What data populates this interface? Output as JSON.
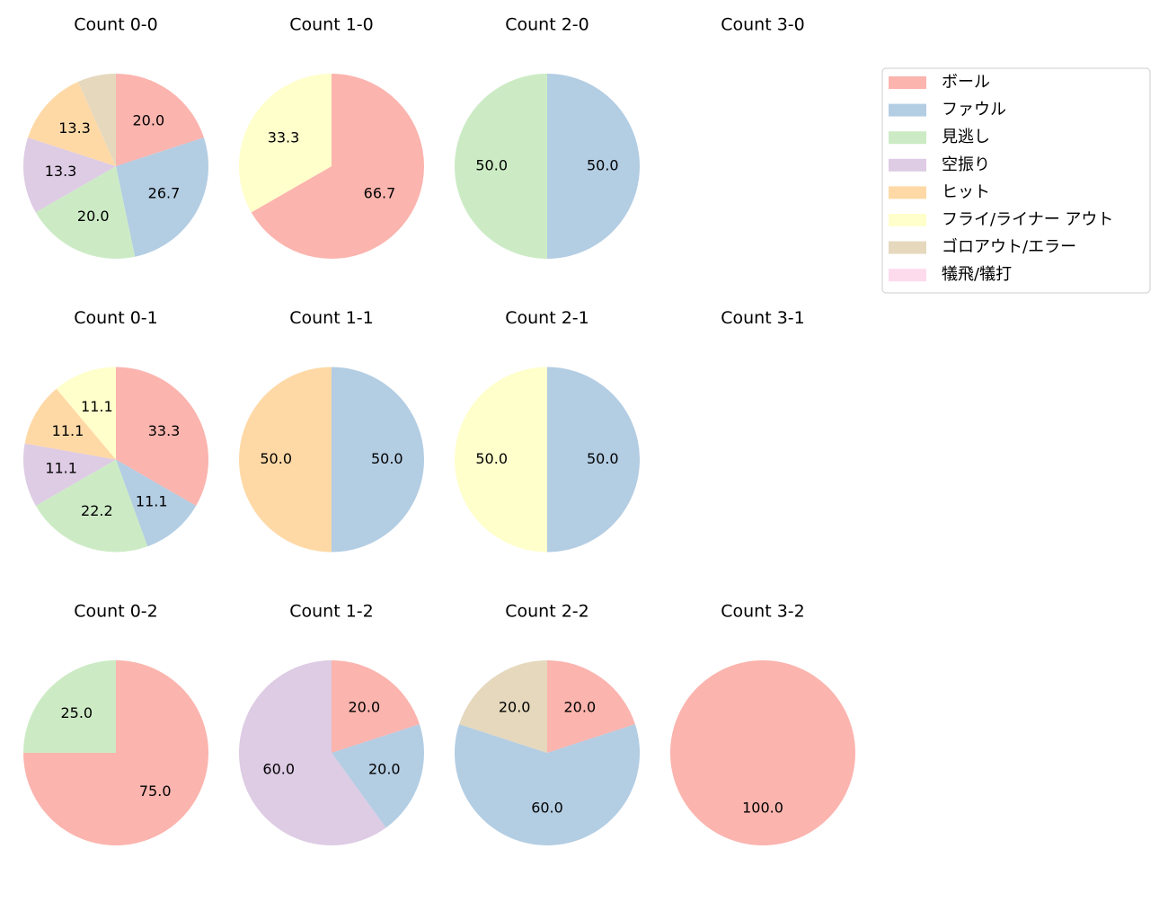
{
  "legend": {
    "labels": [
      "ボール",
      "ファウル",
      "見逃し",
      "空振り",
      "ヒット",
      "フライ/ライナー アウト",
      "ゴロアウト/エラー",
      "犠飛/犠打"
    ],
    "colors": [
      "#fbb4ae",
      "#b3cde3",
      "#ccebc5",
      "#decbe4",
      "#fed9a6",
      "#ffffcc",
      "#e5d8bd",
      "#fddaec"
    ]
  },
  "chart_data": [
    {
      "type": "pie",
      "title": "Count 0-0",
      "categories": [
        "ボール",
        "ファウル",
        "見逃し",
        "空振り",
        "ヒット",
        "ゴロアウト/エラー"
      ],
      "values": [
        20.0,
        26.7,
        20.0,
        13.3,
        13.3,
        6.7
      ],
      "value_labels": [
        "20.0",
        "26.7",
        "20.0",
        "13.3",
        "13.3",
        null
      ]
    },
    {
      "type": "pie",
      "title": "Count 1-0",
      "categories": [
        "ボール",
        "フライ/ライナー アウト"
      ],
      "values": [
        66.7,
        33.3
      ],
      "value_labels": [
        "66.7",
        "33.3"
      ]
    },
    {
      "type": "pie",
      "title": "Count 2-0",
      "categories": [
        "ファウル",
        "見逃し"
      ],
      "values": [
        50,
        50
      ],
      "value_labels": [
        "50.0",
        "50.0"
      ]
    },
    {
      "type": "pie",
      "title": "Count 3-0",
      "categories": [],
      "values": [],
      "value_labels": []
    },
    {
      "type": "pie",
      "title": "Count 0-1",
      "categories": [
        "ボール",
        "ファウル",
        "見逃し",
        "空振り",
        "ヒット",
        "フライ/ライナー アウト"
      ],
      "values": [
        33.3,
        11.1,
        22.2,
        11.1,
        11.1,
        11.1
      ],
      "value_labels": [
        "33.3",
        "11.1",
        "22.2",
        "11.1",
        "11.1",
        "11.1"
      ]
    },
    {
      "type": "pie",
      "title": "Count 1-1",
      "categories": [
        "ファウル",
        "ヒット"
      ],
      "values": [
        50,
        50
      ],
      "value_labels": [
        "50.0",
        "50.0"
      ]
    },
    {
      "type": "pie",
      "title": "Count 2-1",
      "categories": [
        "ファウル",
        "フライ/ライナー アウト"
      ],
      "values": [
        50,
        50
      ],
      "value_labels": [
        "50.0",
        "50.0"
      ]
    },
    {
      "type": "pie",
      "title": "Count 3-1",
      "categories": [],
      "values": [],
      "value_labels": []
    },
    {
      "type": "pie",
      "title": "Count 0-2",
      "categories": [
        "ボール",
        "見逃し"
      ],
      "values": [
        75,
        25
      ],
      "value_labels": [
        "75.0",
        "25.0"
      ]
    },
    {
      "type": "pie",
      "title": "Count 1-2",
      "categories": [
        "ボール",
        "ファウル",
        "空振り"
      ],
      "values": [
        20,
        20,
        60
      ],
      "value_labels": [
        "20.0",
        "20.0",
        "60.0"
      ]
    },
    {
      "type": "pie",
      "title": "Count 2-2",
      "categories": [
        "ボール",
        "ファウル",
        "ゴロアウト/エラー"
      ],
      "values": [
        20,
        60,
        20
      ],
      "value_labels": [
        "20.0",
        "60.0",
        "20.0"
      ]
    },
    {
      "type": "pie",
      "title": "Count 3-2",
      "categories": [
        "ボール"
      ],
      "values": [
        100
      ],
      "value_labels": [
        "100.0"
      ]
    }
  ]
}
